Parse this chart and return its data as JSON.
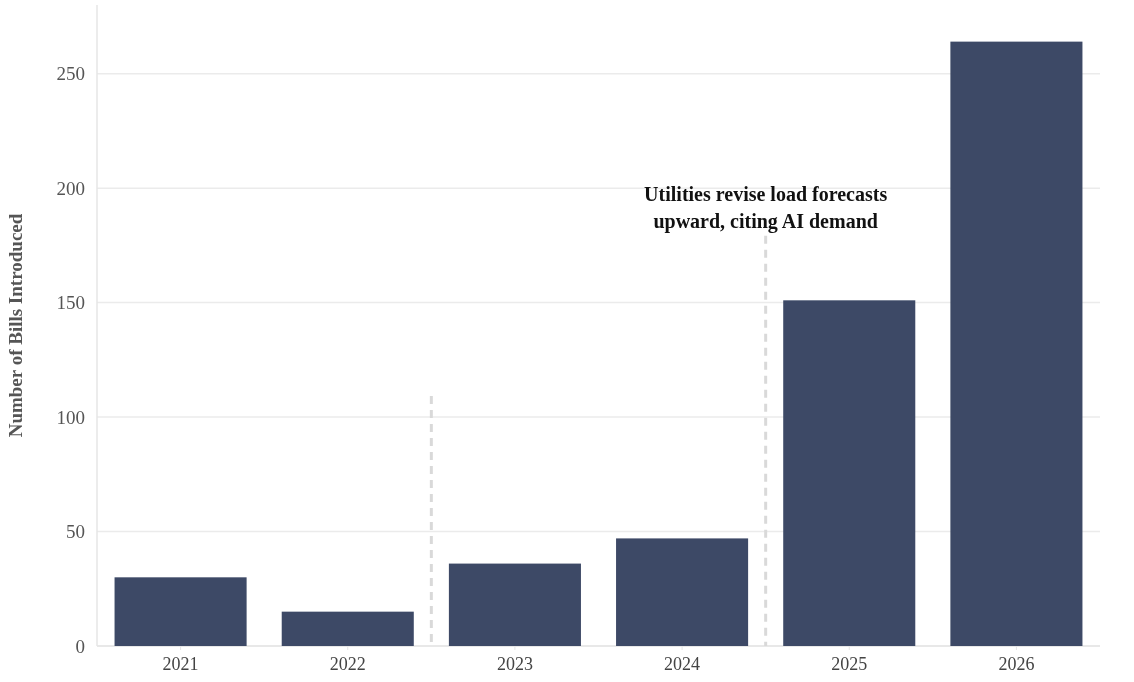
{
  "chart_data": {
    "type": "bar",
    "ylabel": "Number of Bills Introduced",
    "x": [
      2021,
      2022,
      2023,
      2024,
      2025,
      2026
    ],
    "values": [
      30,
      15,
      36,
      47,
      151,
      264
    ],
    "color": "#3d4966",
    "xlim": [
      2020.5,
      2026.5
    ],
    "xticks": [
      2021,
      2022,
      2023,
      2024,
      2025,
      2026
    ],
    "ylim": [
      0,
      280
    ],
    "yticks": [
      0,
      50,
      100,
      150,
      200,
      250
    ],
    "grid": "y",
    "ref_lines": [
      {
        "axis": "x",
        "value": 2022.5,
        "color": "#d9d9d9",
        "line_style": "dashed"
      },
      {
        "axis": "x",
        "value": 2024.5,
        "label": "Utilities revise load forecasts upward, citing AI demand",
        "color": "#d9d9d9",
        "line_style": "dashed"
      }
    ]
  }
}
